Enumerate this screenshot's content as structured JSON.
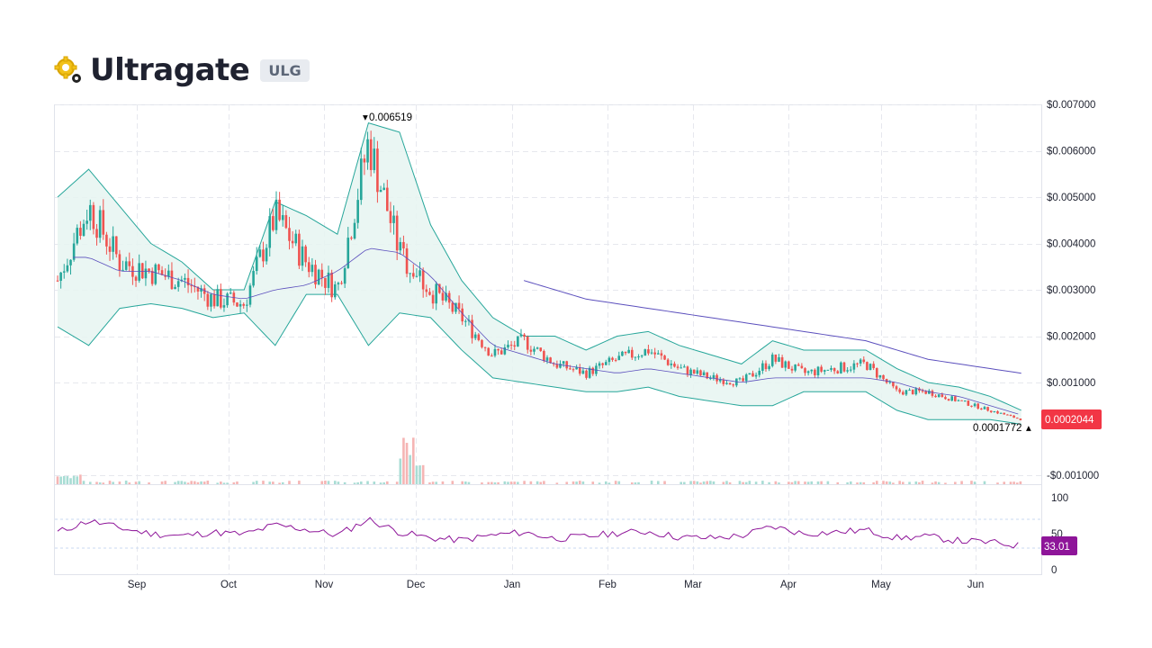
{
  "header": {
    "title": "Ultragate",
    "ticker": "ULG",
    "logo_icon": "gear-coin-icon"
  },
  "colors": {
    "up": "#26a69a",
    "down": "#ef5350",
    "band_fill": "#e6f4f1",
    "band_line": "#26a69a",
    "ma_line": "#5b4fbd",
    "rsi_line": "#8e1599",
    "last_price_tag": "#f23645"
  },
  "chart_data": [
    {
      "type": "candlestick",
      "indicators": [
        "Bollinger Bands",
        "Moving Average",
        "Long Moving Average",
        "Volume"
      ],
      "y_axis": {
        "ticks": [
          0.007,
          0.006,
          0.005,
          0.004,
          0.003,
          0.002,
          0.001,
          -0.001
        ],
        "tick_labels": [
          "$0.007000",
          "$0.006000",
          "$0.005000",
          "$0.004000",
          "$0.003000",
          "$0.002000",
          "$0.001000",
          "-$0.001000"
        ],
        "ylim": [
          -0.0012,
          0.007
        ]
      },
      "x_axis": {
        "months": [
          "Sep",
          "Oct",
          "Nov",
          "Dec",
          "Jan",
          "Feb",
          "Mar",
          "Apr",
          "May",
          "Jun"
        ]
      },
      "annotations": {
        "high_label": "0.006519",
        "low_label": "0.0001772",
        "last_price_label": "0.0002044"
      },
      "x_days": [
        0,
        10,
        20,
        30,
        40,
        50,
        60,
        70,
        80,
        90,
        100,
        110,
        120,
        130,
        140,
        150,
        160,
        170,
        180,
        190,
        200,
        210,
        220,
        230,
        240,
        250,
        260,
        270,
        280,
        290,
        300,
        310
      ],
      "close": [
        0.0032,
        0.0048,
        0.0036,
        0.0034,
        0.0032,
        0.0028,
        0.0027,
        0.0046,
        0.0036,
        0.003,
        0.0062,
        0.0038,
        0.003,
        0.0024,
        0.0016,
        0.0019,
        0.0014,
        0.0012,
        0.0015,
        0.0017,
        0.0013,
        0.0011,
        0.001,
        0.0015,
        0.0012,
        0.0013,
        0.0014,
        0.0008,
        0.0008,
        0.0006,
        0.0004,
        0.0002
      ],
      "bollinger_upper": [
        0.005,
        0.0056,
        0.0048,
        0.004,
        0.0036,
        0.003,
        0.003,
        0.0049,
        0.0046,
        0.0042,
        0.0066,
        0.0064,
        0.0044,
        0.0032,
        0.0024,
        0.002,
        0.002,
        0.0017,
        0.002,
        0.0021,
        0.0018,
        0.0016,
        0.0014,
        0.0019,
        0.0017,
        0.0017,
        0.0017,
        0.0013,
        0.001,
        0.0009,
        0.0007,
        0.0004
      ],
      "bollinger_lower": [
        0.0022,
        0.0018,
        0.0026,
        0.0027,
        0.0026,
        0.0024,
        0.0025,
        0.0018,
        0.0029,
        0.0029,
        0.0018,
        0.0025,
        0.0024,
        0.0017,
        0.0011,
        0.001,
        0.0009,
        0.0008,
        0.0008,
        0.0009,
        0.0007,
        0.0006,
        0.0005,
        0.0005,
        0.0008,
        0.0008,
        0.0008,
        0.0004,
        0.0002,
        0.0002,
        0.0002,
        0.0001
      ],
      "moving_average": [
        0.0037,
        0.0037,
        0.0034,
        0.0034,
        0.0032,
        0.0029,
        0.0028,
        0.003,
        0.0031,
        0.0034,
        0.0039,
        0.0038,
        0.0033,
        0.0025,
        0.0018,
        0.0016,
        0.0014,
        0.0013,
        0.0012,
        0.0013,
        0.0012,
        0.0011,
        0.001,
        0.0011,
        0.0011,
        0.0011,
        0.0011,
        0.001,
        0.0008,
        0.0007,
        0.0005,
        0.0003
      ],
      "long_moving_average": [
        null,
        null,
        null,
        null,
        null,
        null,
        null,
        null,
        null,
        null,
        null,
        null,
        null,
        null,
        null,
        0.0032,
        0.003,
        0.0028,
        0.0027,
        0.0026,
        0.0025,
        0.0024,
        0.0023,
        0.0022,
        0.0021,
        0.002,
        0.0019,
        0.0017,
        0.0015,
        0.0014,
        0.0013,
        0.0012
      ]
    },
    {
      "type": "line",
      "name": "RSI",
      "y_ticks": [
        100,
        50,
        0
      ],
      "ylim": [
        0,
        100
      ],
      "bands": [
        70,
        30
      ],
      "last_value_label": "33.01",
      "values": [
        52,
        68,
        58,
        50,
        47,
        52,
        49,
        62,
        56,
        48,
        70,
        52,
        44,
        41,
        48,
        52,
        43,
        46,
        51,
        53,
        45,
        44,
        47,
        60,
        50,
        52,
        55,
        44,
        46,
        40,
        38,
        33
      ]
    }
  ]
}
